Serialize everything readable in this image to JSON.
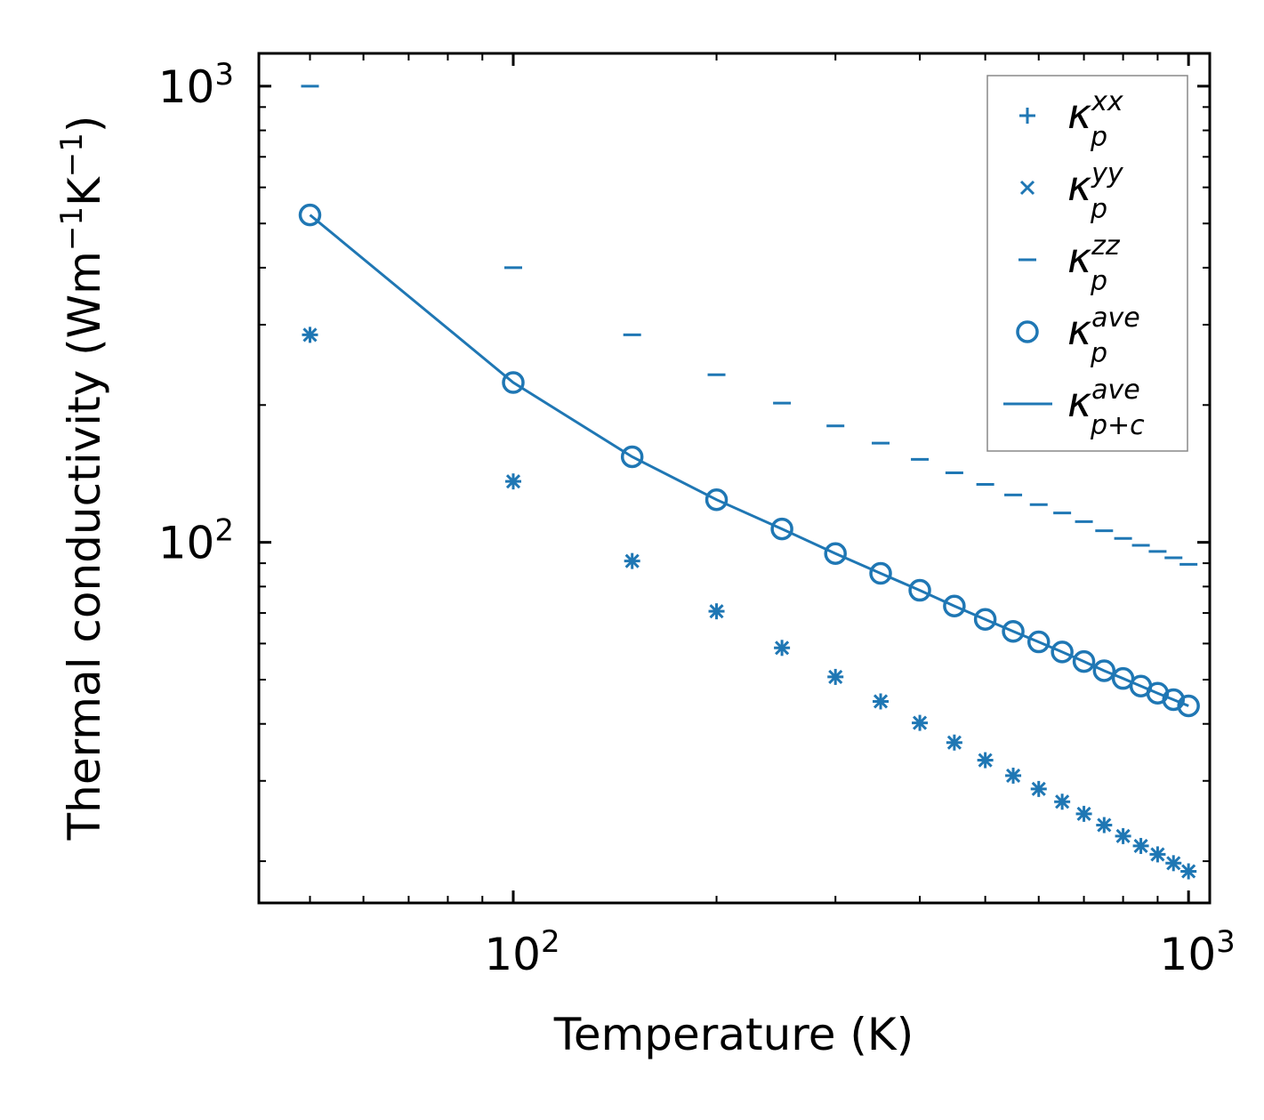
{
  "chart_data": {
    "type": "scatter",
    "title": "",
    "xlabel": "Temperature (K)",
    "ylabel": "Thermal conductivity (Wm⁻¹K⁻¹)",
    "xscale": "log",
    "yscale": "log",
    "xlim": [
      42,
      1075
    ],
    "ylim": [
      16.2,
      1180
    ],
    "x_tick_labels": [
      {
        "value": 100,
        "base": "10",
        "exp": "2"
      },
      {
        "value": 1000,
        "base": "10",
        "exp": "3"
      }
    ],
    "y_tick_labels": [
      {
        "value": 100,
        "base": "10",
        "exp": "2"
      },
      {
        "value": 1000,
        "base": "10",
        "exp": "3"
      }
    ],
    "legend_position": "top-right",
    "x": [
      50,
      100,
      150,
      200,
      250,
      300,
      350,
      400,
      450,
      500,
      550,
      600,
      650,
      700,
      750,
      800,
      850,
      900,
      950,
      1000
    ],
    "series": [
      {
        "name": "kappa_p_xx",
        "label_base": "κ",
        "label_sub": "p",
        "label_sup": "xx",
        "marker": "plus",
        "values": [
          285,
          136,
          91,
          70.6,
          58.7,
          50.7,
          44.8,
          40.2,
          36.4,
          33.3,
          30.8,
          28.8,
          27.0,
          25.4,
          24.0,
          22.7,
          21.6,
          20.7,
          19.8,
          19.0
        ]
      },
      {
        "name": "kappa_p_yy",
        "label_base": "κ",
        "label_sub": "p",
        "label_sup": "yy",
        "marker": "x",
        "values": [
          285,
          136,
          91,
          70.6,
          58.7,
          50.7,
          44.8,
          40.2,
          36.4,
          33.3,
          30.8,
          28.8,
          27.0,
          25.4,
          24.0,
          22.7,
          21.6,
          20.7,
          19.8,
          19.0
        ]
      },
      {
        "name": "kappa_p_zz",
        "label_base": "κ",
        "label_sub": "p",
        "label_sup": "zz",
        "marker": "hline",
        "values": [
          1000,
          400,
          285,
          233,
          202,
          180,
          165,
          152,
          142,
          134,
          127,
          121,
          116,
          111,
          106,
          102,
          98.5,
          95.5,
          92.5,
          89.5
        ]
      },
      {
        "name": "kappa_p_ave",
        "label_base": "κ",
        "label_sub": "p",
        "label_sup": "ave",
        "marker": "circle",
        "values": [
          522,
          224,
          154,
          124,
          107,
          94.5,
          85.5,
          78.5,
          72.5,
          67.8,
          63.8,
          60.5,
          57.5,
          54.8,
          52.3,
          50.3,
          48.4,
          46.7,
          45.2,
          43.8
        ]
      },
      {
        "name": "kappa_p+c_ave",
        "label_base": "κ",
        "label_sub": "p+c",
        "label_sup": "ave",
        "marker": "line",
        "values": [
          522,
          224,
          154,
          124,
          107,
          94.5,
          85.5,
          78.5,
          72.5,
          67.8,
          63.8,
          60.5,
          57.5,
          54.8,
          52.3,
          50.3,
          48.4,
          46.7,
          45.2,
          43.8
        ]
      }
    ],
    "color": "#1f77b4"
  }
}
